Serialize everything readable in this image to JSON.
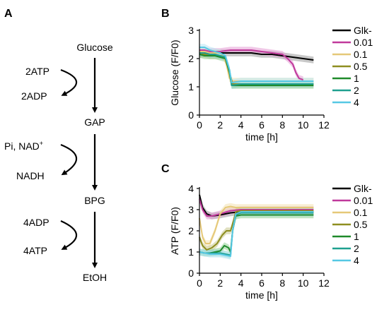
{
  "panel_a": {
    "letter": "A",
    "metabolites": [
      "Glucose",
      "GAP",
      "BPG",
      "EtOH"
    ],
    "steps": [
      {
        "consumed": "2ATP",
        "produced": "2ADP"
      },
      {
        "consumed": "Pi, NAD",
        "consumed_sup": "+",
        "produced": "NADH"
      },
      {
        "consumed": "4ADP",
        "produced": "4ATP"
      }
    ]
  },
  "chart_data": [
    {
      "panel": "B",
      "type": "line",
      "xlabel": "time [h]",
      "ylabel": "Glucose (F/F0)",
      "xlim": [
        0,
        12
      ],
      "ylim": [
        0,
        3
      ],
      "xticks": [
        0,
        2,
        4,
        6,
        8,
        10,
        12
      ],
      "yticks": [
        0,
        1,
        2,
        3
      ],
      "legend_position": "right",
      "shaded_error_bands": true,
      "series": [
        {
          "name": "Glk-",
          "color": "#000000",
          "band": "#9a9a9a",
          "x": [
            0,
            0.5,
            1,
            1.5,
            2,
            3,
            4,
            5,
            6,
            7,
            8,
            9,
            10,
            11
          ],
          "y": [
            2.15,
            2.2,
            2.15,
            2.2,
            2.2,
            2.2,
            2.2,
            2.2,
            2.15,
            2.15,
            2.1,
            2.05,
            2.0,
            1.95
          ]
        },
        {
          "name": "0.01",
          "color": "#c0399b",
          "band": "#e39bd3",
          "x": [
            0,
            0.5,
            1,
            1.5,
            2,
            3,
            4,
            5,
            6,
            7,
            8,
            8.5,
            9,
            9.3,
            9.6,
            10
          ],
          "y": [
            2.3,
            2.3,
            2.25,
            2.25,
            2.25,
            2.3,
            2.3,
            2.3,
            2.25,
            2.2,
            2.15,
            2.0,
            1.8,
            1.5,
            1.3,
            1.25
          ]
        },
        {
          "name": "0.1",
          "color": "#e5c878",
          "band": "#f2e2b0",
          "x": [
            0,
            0.5,
            1,
            1.5,
            2,
            2.3,
            2.6,
            2.9,
            3.2,
            4,
            5,
            6,
            7,
            8,
            9,
            10,
            11
          ],
          "y": [
            2.25,
            2.25,
            2.2,
            2.2,
            2.2,
            2.1,
            1.8,
            1.3,
            1.2,
            1.2,
            1.2,
            1.2,
            1.2,
            1.2,
            1.2,
            1.2,
            1.2
          ]
        },
        {
          "name": "0.5",
          "color": "#8e8e20",
          "band": "#c7c78a",
          "x": [
            0,
            0.5,
            1,
            1.5,
            2,
            2.5,
            2.9,
            3.2,
            4,
            5,
            6,
            7,
            8,
            9,
            10,
            11
          ],
          "y": [
            2.15,
            2.15,
            2.1,
            2.1,
            2.1,
            2.05,
            1.5,
            1.1,
            1.1,
            1.1,
            1.1,
            1.1,
            1.1,
            1.1,
            1.1,
            1.1
          ]
        },
        {
          "name": "1",
          "color": "#1f8a2a",
          "band": "#8fcf93",
          "x": [
            0,
            0.5,
            1,
            1.5,
            2,
            2.5,
            2.9,
            3.1,
            4,
            5,
            6,
            7,
            8,
            9,
            10,
            11
          ],
          "y": [
            2.15,
            2.1,
            2.1,
            2.1,
            2.05,
            2.0,
            1.5,
            1.05,
            1.05,
            1.05,
            1.05,
            1.05,
            1.05,
            1.05,
            1.05,
            1.05
          ]
        },
        {
          "name": "2",
          "color": "#1fa08f",
          "band": "#8fd6cc",
          "x": [
            0,
            0.5,
            1,
            1.5,
            2,
            2.5,
            2.9,
            3.1,
            4,
            5,
            6,
            7,
            8,
            9,
            10,
            11
          ],
          "y": [
            2.2,
            2.2,
            2.15,
            2.15,
            2.1,
            2.05,
            1.6,
            1.05,
            1.1,
            1.1,
            1.1,
            1.1,
            1.1,
            1.1,
            1.1,
            1.1
          ]
        },
        {
          "name": "4",
          "color": "#56c8e4",
          "band": "#b4e5f2",
          "x": [
            0,
            0.5,
            1,
            1.5,
            2,
            2.5,
            2.9,
            3.1,
            4,
            5,
            6,
            7,
            8,
            9,
            10,
            11
          ],
          "y": [
            2.4,
            2.4,
            2.3,
            2.25,
            2.2,
            2.1,
            1.6,
            1.15,
            1.2,
            1.2,
            1.2,
            1.2,
            1.2,
            1.2,
            1.2,
            1.2
          ]
        }
      ]
    },
    {
      "panel": "C",
      "type": "line",
      "xlabel": "time [h]",
      "ylabel": "ATP  (F/F0)",
      "xlim": [
        0,
        12
      ],
      "ylim": [
        0,
        4
      ],
      "xticks": [
        0,
        2,
        4,
        6,
        8,
        10,
        12
      ],
      "yticks": [
        0,
        1,
        2,
        3,
        4
      ],
      "legend_position": "right",
      "shaded_error_bands": true,
      "series": [
        {
          "name": "Glk-",
          "color": "#000000",
          "band": "#9a9a9a",
          "x": [
            0,
            0.3,
            0.7,
            1.2,
            2,
            3,
            4,
            5,
            6,
            7,
            8,
            9,
            10,
            11
          ],
          "y": [
            3.7,
            3.1,
            2.8,
            2.7,
            2.75,
            2.85,
            2.9,
            2.9,
            2.9,
            2.9,
            2.9,
            2.9,
            2.9,
            2.9
          ]
        },
        {
          "name": "0.01",
          "color": "#c0399b",
          "band": "#e39bd3",
          "x": [
            0,
            0.3,
            0.7,
            1.2,
            2,
            3,
            4,
            5,
            6,
            7,
            8,
            9,
            10,
            11
          ],
          "y": [
            3.5,
            3.0,
            2.7,
            2.7,
            2.8,
            2.95,
            3.0,
            3.0,
            3.0,
            3.0,
            3.0,
            3.0,
            3.0,
            3.0
          ]
        },
        {
          "name": "0.1",
          "color": "#e5c878",
          "band": "#f2e2b0",
          "x": [
            0,
            0.3,
            0.6,
            1.0,
            1.5,
            2.0,
            2.5,
            3.0,
            3.5,
            4,
            5,
            6,
            7,
            8,
            9,
            10,
            11
          ],
          "y": [
            2.6,
            1.7,
            1.4,
            1.4,
            2.0,
            2.8,
            3.1,
            3.15,
            3.1,
            3.1,
            3.1,
            3.1,
            3.1,
            3.1,
            3.1,
            3.1,
            3.1
          ]
        },
        {
          "name": "0.5",
          "color": "#8e8e20",
          "band": "#c7c78a",
          "x": [
            0,
            0.3,
            0.7,
            1.2,
            1.7,
            2.2,
            2.6,
            3.0,
            3.3,
            3.5,
            4,
            5,
            6,
            7,
            8,
            9,
            10,
            11
          ],
          "y": [
            1.7,
            1.3,
            1.1,
            1.2,
            1.4,
            1.8,
            2.0,
            2.0,
            2.5,
            2.9,
            2.95,
            2.95,
            2.95,
            2.95,
            2.95,
            2.95,
            2.95,
            2.95
          ]
        },
        {
          "name": "1",
          "color": "#1f8a2a",
          "band": "#8fcf93",
          "x": [
            0,
            0.5,
            1,
            1.5,
            2,
            2.4,
            2.8,
            3.0,
            3.2,
            3.5,
            4,
            5,
            6,
            7,
            8,
            9,
            10,
            11
          ],
          "y": [
            1.0,
            0.95,
            0.95,
            1.0,
            1.05,
            1.3,
            1.2,
            1.0,
            2.0,
            2.7,
            2.75,
            2.75,
            2.75,
            2.75,
            2.75,
            2.75,
            2.75,
            2.75
          ]
        },
        {
          "name": "2",
          "color": "#1fa08f",
          "band": "#8fd6cc",
          "x": [
            0,
            0.5,
            1,
            1.5,
            2,
            2.5,
            3.0,
            3.2,
            3.5,
            4,
            5,
            6,
            7,
            8,
            9,
            10,
            11
          ],
          "y": [
            1.0,
            0.95,
            0.95,
            0.95,
            0.95,
            0.9,
            0.85,
            2.0,
            2.75,
            2.85,
            2.85,
            2.85,
            2.85,
            2.85,
            2.85,
            2.85,
            2.85
          ]
        },
        {
          "name": "4",
          "color": "#56c8e4",
          "band": "#b4e5f2",
          "x": [
            0,
            0.5,
            1,
            1.5,
            2,
            2.5,
            3.0,
            3.2,
            3.5,
            4,
            5,
            6,
            7,
            8,
            9,
            10,
            11
          ],
          "y": [
            1.0,
            0.95,
            0.9,
            0.9,
            0.9,
            0.85,
            0.8,
            2.0,
            2.8,
            2.9,
            2.9,
            2.9,
            2.9,
            2.9,
            2.9,
            2.9,
            2.9
          ]
        }
      ]
    }
  ]
}
